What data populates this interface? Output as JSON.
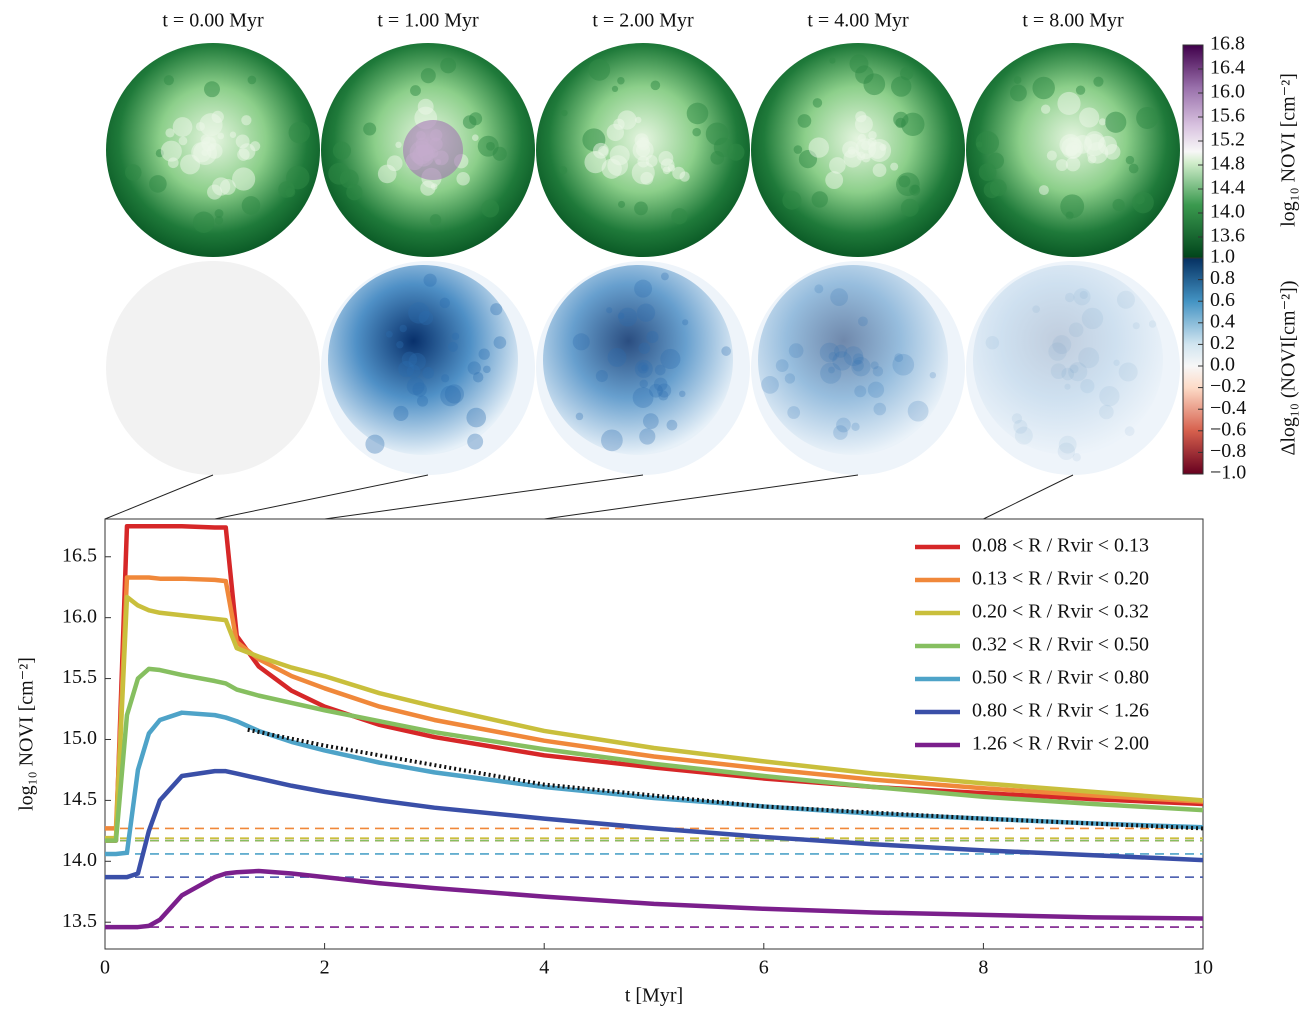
{
  "chart_data": [
    {
      "type": "map-grid",
      "titles": [
        "t = 0.00 Myr",
        "t = 1.00 Myr",
        "t = 2.00 Myr",
        "t = 4.00 Myr",
        "t = 8.00 Myr"
      ],
      "times": [
        0,
        1,
        2,
        4,
        8
      ],
      "colorbars": [
        {
          "label": "log₁₀ NOVI [cm⁻²]",
          "lim": [
            13.25,
            16.8
          ],
          "ticks": [
            {
              "value": 13.6,
              "label": "13.6"
            },
            {
              "value": 14,
              "label": "14.0"
            },
            14.4,
            14.8,
            15.2,
            15.6,
            {
              "value": 16,
              "label": "16.0"
            },
            16.4,
            16.8
          ]
        },
        {
          "label": "Δlog₁₀ (NOVI[cm⁻²])",
          "lim": [
            -1,
            1
          ],
          "ticks": [
            {
              "value": -1,
              "label": "−1.0"
            },
            {
              "value": -0.8,
              "label": "−0.8"
            },
            {
              "value": -0.6,
              "label": "−0.6"
            },
            {
              "value": -0.4,
              "label": "−0.4"
            },
            {
              "value": -0.2,
              "label": "−0.2"
            },
            {
              "value": 0,
              "label": "0.0"
            },
            0.2,
            0.4,
            0.6,
            0.8,
            {
              "value": 1,
              "label": "1.0"
            }
          ]
        }
      ]
    },
    {
      "type": "line",
      "xlabel": "t [Myr]",
      "ylabel": "log₁₀ NOVI [cm⁻²]",
      "xlim": [
        0,
        10
      ],
      "ylim": [
        13.28,
        16.81
      ],
      "xticks": [
        0,
        2,
        4,
        6,
        8,
        10
      ],
      "yticks": [
        13.5,
        {
          "value": 14,
          "label": "14.0"
        },
        14.5,
        {
          "value": 15,
          "label": "15.0"
        },
        15.5,
        {
          "value": 16,
          "label": "16.0"
        },
        16.5
      ],
      "legend": "upper right",
      "x": [
        0,
        0.1,
        0.2,
        0.3,
        0.4,
        0.5,
        0.7,
        1.0,
        1.1,
        1.2,
        1.4,
        1.7,
        2,
        2.5,
        3,
        4,
        5,
        6,
        7,
        8,
        9,
        10
      ],
      "series": [
        {
          "name": "0.08 < R / Rvir < 0.13",
          "color": "#d62728",
          "initial": 14.17,
          "values": [
            14.17,
            14.17,
            16.75,
            16.75,
            16.75,
            16.75,
            16.75,
            16.74,
            16.74,
            15.85,
            15.6,
            15.4,
            15.27,
            15.12,
            15.02,
            14.87,
            14.77,
            14.68,
            14.61,
            14.56,
            14.51,
            14.47
          ]
        },
        {
          "name": "0.13 < R / Rvir < 0.20",
          "color": "#f0883a",
          "initial": 14.27,
          "values": [
            14.27,
            14.27,
            16.33,
            16.33,
            16.33,
            16.32,
            16.32,
            16.31,
            16.3,
            15.8,
            15.66,
            15.52,
            15.42,
            15.27,
            15.16,
            14.99,
            14.86,
            14.76,
            14.67,
            14.6,
            14.54,
            14.49
          ]
        },
        {
          "name": "0.20 < R / Rvir < 0.32",
          "color": "#c9bf3c",
          "initial": 14.19,
          "values": [
            14.19,
            14.19,
            16.17,
            16.1,
            16.06,
            16.04,
            16.02,
            15.99,
            15.98,
            15.75,
            15.68,
            15.59,
            15.52,
            15.38,
            15.27,
            15.07,
            14.93,
            14.82,
            14.72,
            14.64,
            14.57,
            14.5
          ]
        },
        {
          "name": "0.32 < R / Rvir < 0.50",
          "color": "#86bf60",
          "initial": 14.17,
          "values": [
            14.17,
            14.17,
            15.2,
            15.5,
            15.58,
            15.57,
            15.53,
            15.48,
            15.46,
            15.41,
            15.36,
            15.3,
            15.24,
            15.15,
            15.06,
            14.92,
            14.8,
            14.7,
            14.61,
            14.53,
            14.47,
            14.42
          ]
        },
        {
          "name": "0.50 < R / Rvir < 0.80",
          "color": "#4ea3c8",
          "initial": 14.06,
          "values": [
            14.06,
            14.06,
            14.07,
            14.75,
            15.05,
            15.16,
            15.22,
            15.2,
            15.18,
            15.15,
            15.07,
            14.98,
            14.91,
            14.81,
            14.73,
            14.61,
            14.52,
            14.45,
            14.39,
            14.35,
            14.31,
            14.28
          ]
        },
        {
          "name": "0.80 < R / Rvir < 1.26",
          "color": "#3a4fa8",
          "initial": 13.87,
          "values": [
            13.87,
            13.87,
            13.87,
            13.9,
            14.25,
            14.5,
            14.7,
            14.74,
            14.74,
            14.72,
            14.68,
            14.62,
            14.57,
            14.5,
            14.44,
            14.35,
            14.27,
            14.2,
            14.14,
            14.09,
            14.05,
            14.01
          ]
        },
        {
          "name": "1.26 < R / Rvir < 2.00",
          "color": "#7b1f8c",
          "initial": 13.46,
          "values": [
            13.46,
            13.46,
            13.46,
            13.46,
            13.47,
            13.52,
            13.72,
            13.87,
            13.9,
            13.91,
            13.92,
            13.9,
            13.87,
            13.82,
            13.78,
            13.71,
            13.65,
            13.61,
            13.58,
            13.56,
            13.54,
            13.53
          ]
        }
      ],
      "fit": {
        "color": "#111111",
        "x": [
          1.3,
          2,
          4,
          6,
          8,
          10
        ],
        "values": [
          15.08,
          14.95,
          14.63,
          14.45,
          14.35,
          14.27
        ]
      }
    }
  ]
}
